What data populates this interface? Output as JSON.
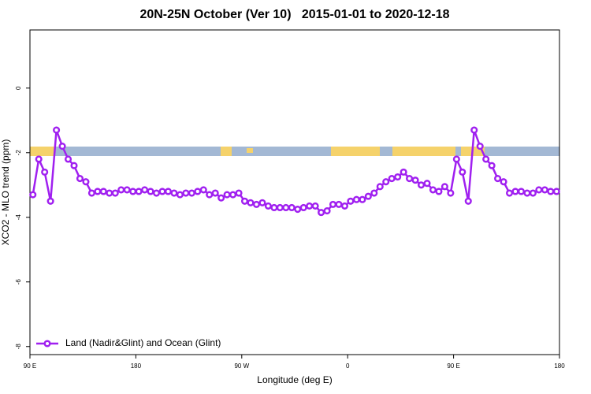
{
  "chart_data": {
    "type": "line",
    "title": "20N-25N October (Ver 10)   2015-01-01 to 2020-12-18",
    "x_label": "Longitude (deg E)",
    "y_label": "XCO2 - MLO trend (ppm)",
    "x": [
      92.5,
      97.5,
      102.5,
      107.5,
      112.5,
      117.5,
      122.5,
      127.5,
      132.5,
      137.5,
      142.5,
      147.5,
      152.5,
      157.5,
      162.5,
      167.5,
      172.5,
      177.5,
      182.5,
      187.5,
      192.5,
      197.5,
      202.5,
      207.5,
      212.5,
      217.5,
      222.5,
      227.5,
      232.5,
      237.5,
      242.5,
      247.5,
      252.5,
      257.5,
      262.5,
      267.5,
      272.5,
      277.5,
      282.5,
      287.5,
      292.5,
      297.5,
      302.5,
      307.5,
      312.5,
      317.5,
      322.5,
      327.5,
      332.5,
      337.5,
      342.5,
      347.5,
      352.5,
      357.5,
      362.5,
      367.5,
      372.5,
      377.5,
      382.5,
      387.5,
      392.5,
      397.5,
      402.5,
      407.5,
      412.5,
      417.5,
      422.5,
      427.5,
      432.5,
      437.5,
      442.5,
      447.5,
      452.5,
      457.5,
      462.5,
      467.5,
      472.5,
      477.5,
      482.5,
      487.5,
      492.5,
      497.5,
      502.5,
      507.5,
      512.5,
      517.5,
      522.5,
      527.5,
      532.5,
      537.5
    ],
    "series": [
      {
        "name": "Land (Nadir&Glint) and Ocean (Glint)",
        "color": "#a020f0",
        "values": [
          -3.3,
          -2.2,
          -2.6,
          -3.5,
          -1.3,
          -1.8,
          -2.2,
          -2.4,
          -2.8,
          -2.9,
          -3.25,
          -3.2,
          -3.2,
          -3.25,
          -3.25,
          -3.15,
          -3.15,
          -3.2,
          -3.2,
          -3.15,
          -3.2,
          -3.25,
          -3.2,
          -3.2,
          -3.25,
          -3.3,
          -3.25,
          -3.25,
          -3.2,
          -3.15,
          -3.3,
          -3.25,
          -3.4,
          -3.3,
          -3.3,
          -3.25,
          -3.5,
          -3.55,
          -3.6,
          -3.55,
          -3.65,
          -3.7,
          -3.7,
          -3.7,
          -3.7,
          -3.75,
          -3.7,
          -3.65,
          -3.65,
          -3.85,
          -3.8,
          -3.6,
          -3.6,
          -3.65,
          -3.5,
          -3.45,
          -3.45,
          -3.35,
          -3.25,
          -3.05,
          -2.9,
          -2.8,
          -2.75,
          -2.6,
          -2.8,
          -2.85,
          -3.0,
          -2.95,
          -3.15,
          -3.2,
          -3.05,
          -3.25,
          -2.2,
          -2.6,
          -3.5,
          -1.3,
          -1.8,
          -2.2,
          -2.4,
          -2.8,
          -2.9,
          -3.25,
          -3.2,
          -3.2,
          -3.25,
          -3.25,
          -3.15,
          -3.15,
          -3.2,
          -3.2
        ]
      }
    ],
    "xlim": [
      90,
      540
    ],
    "xticks": [
      {
        "value": 90,
        "label": "90 E"
      },
      180,
      {
        "value": 270,
        "label": "90 W"
      },
      {
        "value": 360,
        "label": "0"
      },
      {
        "value": 450,
        "label": "90 E"
      },
      {
        "value": 540,
        "label": "180"
      }
    ],
    "ylim": [
      -8.25,
      1.8
    ],
    "yticks": [
      -8,
      -6,
      -4,
      -2,
      0
    ],
    "legend": "bottomleft"
  }
}
